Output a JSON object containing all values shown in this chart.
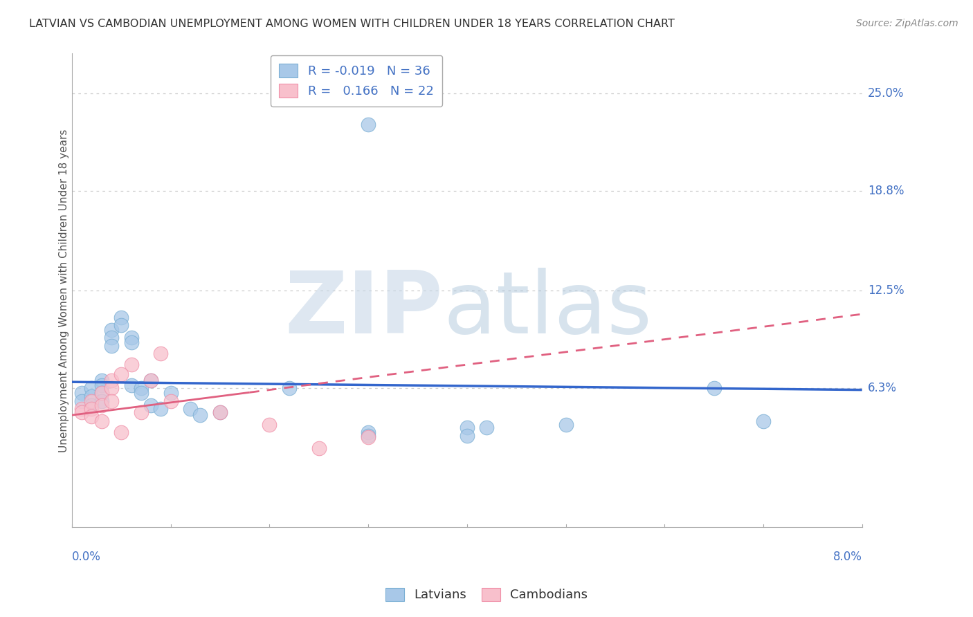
{
  "title": "LATVIAN VS CAMBODIAN UNEMPLOYMENT AMONG WOMEN WITH CHILDREN UNDER 18 YEARS CORRELATION CHART",
  "source": "Source: ZipAtlas.com",
  "ylabel": "Unemployment Among Women with Children Under 18 years",
  "ytick_labels": [
    "25.0%",
    "18.8%",
    "12.5%",
    "6.3%"
  ],
  "ytick_values": [
    0.25,
    0.188,
    0.125,
    0.063
  ],
  "xmin": 0.0,
  "xmax": 0.08,
  "ymin": -0.025,
  "ymax": 0.275,
  "latvian_color": "#a8c8e8",
  "latvian_edge_color": "#7bafd4",
  "cambodian_color": "#f8c0cc",
  "cambodian_edge_color": "#f090a8",
  "latvian_line_color": "#3366cc",
  "cambodian_line_color": "#e06080",
  "latvians_label": "Latvians",
  "cambodians_label": "Cambodians",
  "watermark_zip_color": "#c8d8e8",
  "watermark_atlas_color": "#b0c8dc",
  "background_color": "#ffffff",
  "grid_color": "#cccccc",
  "axis_color": "#aaaaaa",
  "title_color": "#333333",
  "label_color": "#4472c4",
  "source_color": "#888888",
  "latvian_scatter": [
    [
      0.001,
      0.06
    ],
    [
      0.001,
      0.055
    ],
    [
      0.002,
      0.063
    ],
    [
      0.002,
      0.058
    ],
    [
      0.002,
      0.052
    ],
    [
      0.003,
      0.068
    ],
    [
      0.003,
      0.065
    ],
    [
      0.003,
      0.06
    ],
    [
      0.003,
      0.055
    ],
    [
      0.004,
      0.1
    ],
    [
      0.004,
      0.095
    ],
    [
      0.004,
      0.09
    ],
    [
      0.005,
      0.108
    ],
    [
      0.005,
      0.103
    ],
    [
      0.006,
      0.095
    ],
    [
      0.006,
      0.092
    ],
    [
      0.006,
      0.065
    ],
    [
      0.007,
      0.063
    ],
    [
      0.007,
      0.06
    ],
    [
      0.008,
      0.068
    ],
    [
      0.008,
      0.052
    ],
    [
      0.009,
      0.05
    ],
    [
      0.01,
      0.06
    ],
    [
      0.012,
      0.05
    ],
    [
      0.013,
      0.046
    ],
    [
      0.015,
      0.048
    ],
    [
      0.022,
      0.063
    ],
    [
      0.03,
      0.035
    ],
    [
      0.03,
      0.033
    ],
    [
      0.04,
      0.038
    ],
    [
      0.04,
      0.033
    ],
    [
      0.042,
      0.038
    ],
    [
      0.05,
      0.04
    ],
    [
      0.065,
      0.063
    ],
    [
      0.07,
      0.042
    ],
    [
      0.03,
      0.23
    ]
  ],
  "cambodian_scatter": [
    [
      0.001,
      0.05
    ],
    [
      0.001,
      0.048
    ],
    [
      0.002,
      0.055
    ],
    [
      0.002,
      0.05
    ],
    [
      0.002,
      0.045
    ],
    [
      0.003,
      0.06
    ],
    [
      0.003,
      0.052
    ],
    [
      0.003,
      0.042
    ],
    [
      0.004,
      0.068
    ],
    [
      0.004,
      0.063
    ],
    [
      0.004,
      0.055
    ],
    [
      0.005,
      0.072
    ],
    [
      0.005,
      0.035
    ],
    [
      0.006,
      0.078
    ],
    [
      0.007,
      0.048
    ],
    [
      0.008,
      0.068
    ],
    [
      0.009,
      0.085
    ],
    [
      0.01,
      0.055
    ],
    [
      0.015,
      0.048
    ],
    [
      0.02,
      0.04
    ],
    [
      0.025,
      0.025
    ],
    [
      0.03,
      0.032
    ]
  ],
  "latvian_trend": [
    -0.019,
    0.0655
  ],
  "cambodian_trend": [
    0.166,
    0.048
  ]
}
